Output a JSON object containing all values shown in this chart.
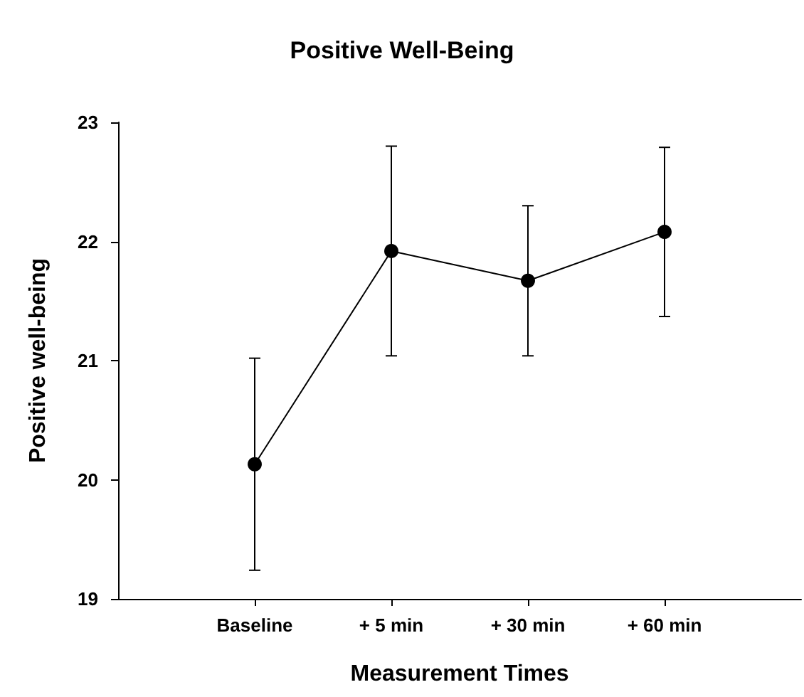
{
  "chart_data": {
    "type": "line",
    "title": "Positive Well-Being",
    "xlabel": "Measurement Times",
    "ylabel": "Positive well-being",
    "categories": [
      "Baseline",
      "+ 5 min",
      "+ 30 min",
      "+ 60 min"
    ],
    "series": [
      {
        "color": "#000000",
        "values": [
          20.13,
          21.92,
          21.67,
          22.08
        ],
        "errors": [
          [
            19.24,
            21.02
          ],
          [
            21.04,
            22.8
          ],
          [
            21.04,
            22.3
          ],
          [
            21.37,
            22.79
          ]
        ]
      }
    ],
    "ylim": [
      19,
      23
    ],
    "yticks": [
      19,
      20,
      21,
      22,
      23
    ],
    "grid": false,
    "marker": "circle",
    "line_style": "solid"
  }
}
